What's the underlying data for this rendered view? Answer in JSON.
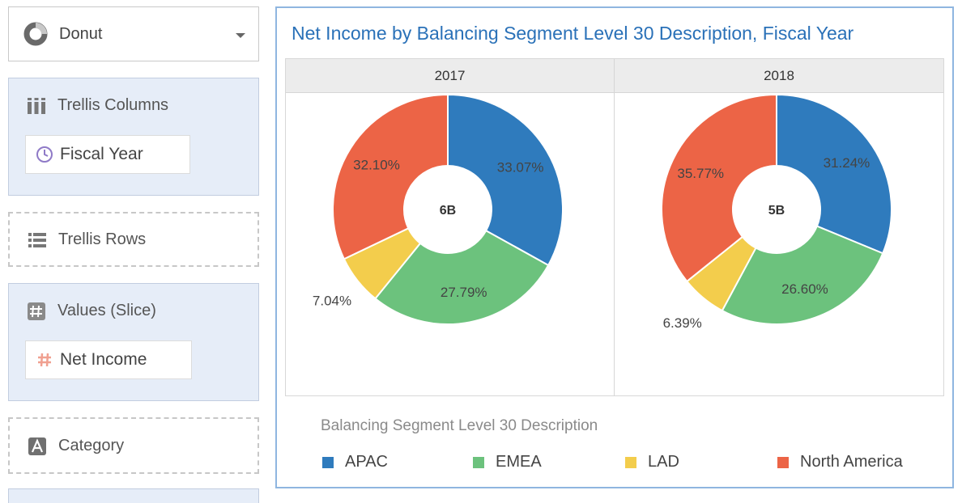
{
  "left_panel": {
    "chart_type": {
      "label": "Donut",
      "icon": "donut-icon"
    },
    "trellis_columns": {
      "label": "Trellis Columns",
      "icon": "columns-icon",
      "pill": {
        "label": "Fiscal Year",
        "icon": "clock-icon"
      }
    },
    "trellis_rows": {
      "label": "Trellis Rows",
      "icon": "rows-icon"
    },
    "values_slice": {
      "label": "Values (Slice)",
      "icon": "hash-icon",
      "pill": {
        "label": "Net Income",
        "icon": "hash-icon"
      }
    },
    "category": {
      "label": "Category",
      "icon": "letter-a-icon"
    }
  },
  "colors": {
    "APAC": "#2f7bbd",
    "EMEA": "#6cc27d",
    "LAD": "#f3cd4c",
    "North America": "#ec6446"
  },
  "chart_data": {
    "type": "donut",
    "title": "Net Income by Balancing Segment Level 30 Description, Fiscal Year",
    "legend_title": "Balancing Segment Level 30 Description",
    "categories": [
      "APAC",
      "EMEA",
      "LAD",
      "North America"
    ],
    "panels": [
      {
        "column": "2017",
        "center_label": "6B",
        "slices": [
          {
            "name": "APAC",
            "value": 33.07,
            "label": "33.07%"
          },
          {
            "name": "EMEA",
            "value": 27.79,
            "label": "27.79%"
          },
          {
            "name": "LAD",
            "value": 7.04,
            "label": "7.04%"
          },
          {
            "name": "North America",
            "value": 32.1,
            "label": "32.10%"
          }
        ]
      },
      {
        "column": "2018",
        "center_label": "5B",
        "slices": [
          {
            "name": "APAC",
            "value": 31.24,
            "label": "31.24%"
          },
          {
            "name": "EMEA",
            "value": 26.6,
            "label": "26.60%"
          },
          {
            "name": "LAD",
            "value": 6.39,
            "label": "6.39%"
          },
          {
            "name": "North America",
            "value": 35.77,
            "label": "35.77%"
          }
        ]
      }
    ]
  }
}
